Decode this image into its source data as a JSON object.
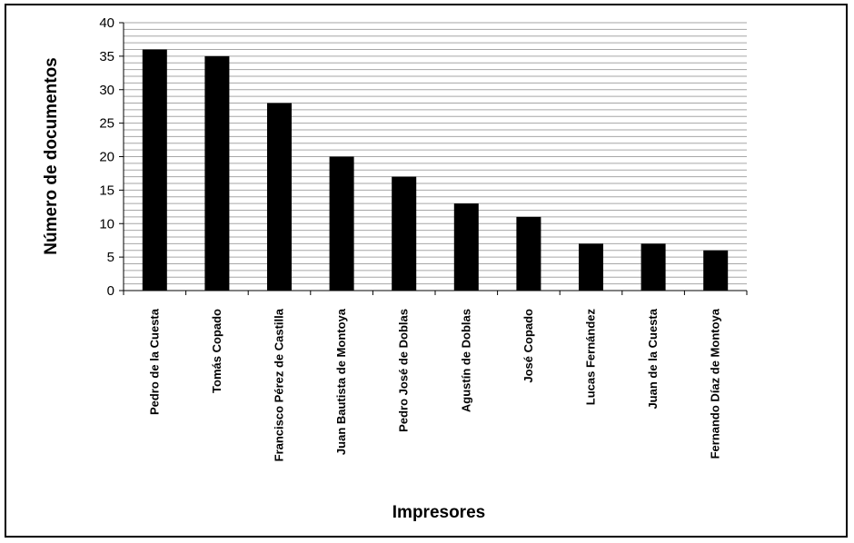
{
  "chart_data": {
    "type": "bar",
    "title": "",
    "xlabel": "Impresores",
    "ylabel": "Número de documentos",
    "ylim": [
      0,
      40
    ],
    "yticks": [
      0,
      5,
      10,
      15,
      20,
      25,
      30,
      35,
      40
    ],
    "minor_grid_step": 1,
    "grid": true,
    "legend": "none",
    "categories": [
      "Pedro de la Cuesta",
      "Tomás Copado",
      "Francisco Pérez de Castilla",
      "Juan Bautista de Montoya",
      "Pedro José de Doblas",
      "Agustín de Doblas",
      "José Copado",
      "Lucas Fernández",
      "Juan de la Cuesta",
      "Fernando Díaz de Montoya"
    ],
    "values": [
      36,
      35,
      28,
      20,
      17,
      13,
      11,
      7,
      7,
      6
    ],
    "bar_color": "#000000",
    "grid_color": "#a6a6a6"
  }
}
